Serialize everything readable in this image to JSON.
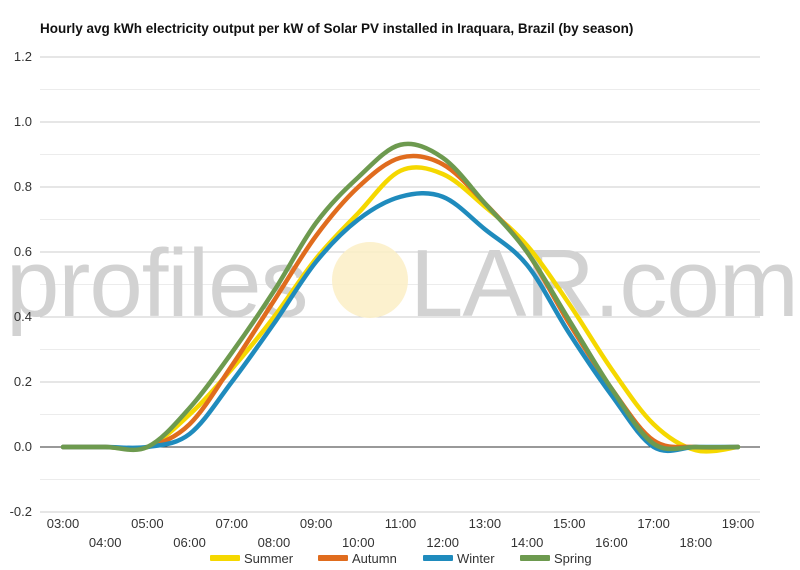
{
  "chart_data": {
    "type": "line",
    "title": "Hourly avg kWh electricity output per kW of Solar PV installed in Iraquara, Brazil (by season)",
    "xlabel": "",
    "ylabel": "",
    "ylim": [
      -0.2,
      1.2
    ],
    "yticks": [
      "-0.2",
      "0.0",
      "0.2",
      "0.4",
      "0.6",
      "0.8",
      "1.0",
      "1.2"
    ],
    "grid": true,
    "legend_position": "bottom",
    "x": [
      "03:00",
      "04:00",
      "05:00",
      "06:00",
      "07:00",
      "08:00",
      "09:00",
      "10:00",
      "11:00",
      "12:00",
      "13:00",
      "14:00",
      "15:00",
      "16:00",
      "17:00",
      "18:00",
      "19:00"
    ],
    "series": [
      {
        "name": "Summer",
        "color": "#f5d800",
        "values": [
          0.0,
          0.0,
          0.0,
          0.1,
          0.24,
          0.4,
          0.58,
          0.72,
          0.85,
          0.84,
          0.74,
          0.62,
          0.44,
          0.24,
          0.07,
          -0.01,
          0.0
        ]
      },
      {
        "name": "Autumn",
        "color": "#e06c1e",
        "values": [
          0.0,
          0.0,
          0.0,
          0.07,
          0.25,
          0.45,
          0.65,
          0.8,
          0.89,
          0.87,
          0.75,
          0.6,
          0.38,
          0.18,
          0.02,
          0.0,
          0.0
        ]
      },
      {
        "name": "Winter",
        "color": "#1f8bbd",
        "values": [
          0.0,
          0.0,
          0.0,
          0.04,
          0.2,
          0.38,
          0.57,
          0.7,
          0.77,
          0.77,
          0.67,
          0.56,
          0.35,
          0.16,
          0.0,
          0.0,
          0.0
        ]
      },
      {
        "name": "Spring",
        "color": "#6d9a4f",
        "values": [
          0.0,
          0.0,
          0.0,
          0.12,
          0.29,
          0.48,
          0.69,
          0.83,
          0.93,
          0.89,
          0.75,
          0.6,
          0.39,
          0.18,
          0.01,
          0.0,
          0.0
        ]
      }
    ]
  },
  "watermark": {
    "left": "profiles",
    "right": "LAR.com"
  }
}
